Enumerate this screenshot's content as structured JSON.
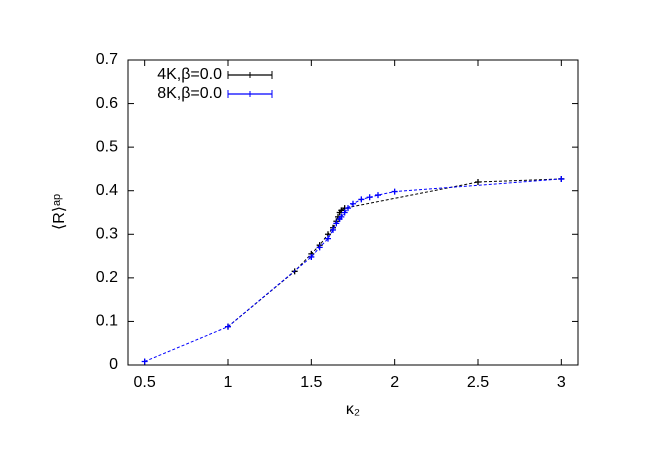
{
  "chart_data": {
    "type": "line",
    "x_label": "κ₂",
    "y_label": "⟨R⟩ᵃᵖ",
    "xlim": [
      0.4,
      3.1
    ],
    "ylim": [
      0,
      0.7
    ],
    "xticks": [
      0.5,
      1,
      1.5,
      2,
      2.5,
      3
    ],
    "yticks": [
      0,
      0.1,
      0.2,
      0.3,
      0.4,
      0.5,
      0.6,
      0.7
    ],
    "legend": "upper left",
    "series": [
      {
        "name": "4K,β=0.0",
        "color": "#000000",
        "x": [
          1,
          1.4,
          1.5,
          1.55,
          1.6,
          1.63,
          1.65,
          1.66,
          1.67,
          1.68,
          1.7,
          2.5,
          3
        ],
        "values": [
          0.088,
          0.215,
          0.255,
          0.275,
          0.3,
          0.315,
          0.33,
          0.34,
          0.35,
          0.355,
          0.36,
          0.42,
          0.427
        ]
      },
      {
        "name": "8K,β=0.0",
        "color": "#0000ff",
        "x": [
          0.5,
          1,
          1.5,
          1.55,
          1.6,
          1.63,
          1.65,
          1.67,
          1.68,
          1.7,
          1.72,
          1.75,
          1.8,
          1.85,
          1.9,
          2,
          3
        ],
        "values": [
          0.008,
          0.088,
          0.248,
          0.27,
          0.29,
          0.31,
          0.325,
          0.335,
          0.34,
          0.35,
          0.36,
          0.37,
          0.38,
          0.385,
          0.39,
          0.398,
          0.427
        ]
      }
    ]
  }
}
